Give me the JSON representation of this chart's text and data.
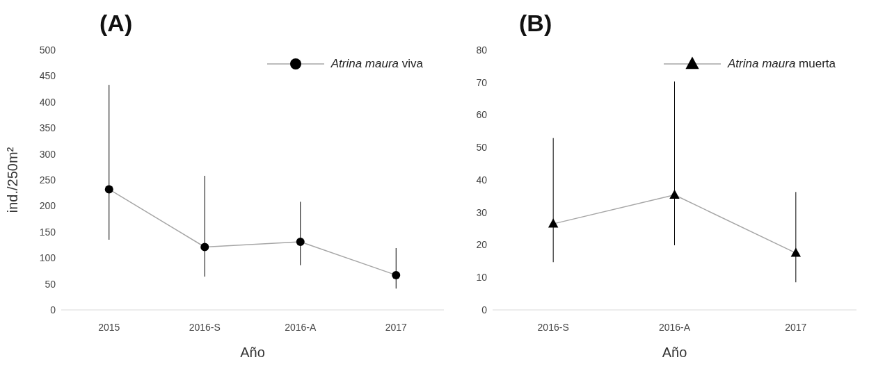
{
  "chart_data": [
    {
      "type": "line",
      "title": "(A)",
      "xlabel": "Año",
      "ylabel": "ind./250m²",
      "categories": [
        "2015",
        "2016-S",
        "2016-A",
        "2017"
      ],
      "series": [
        {
          "name": "Atrina maura viva",
          "color": "#000000",
          "marker": "circle",
          "values": [
            232,
            121,
            131,
            67
          ],
          "errors": [
            [
              135,
              433
            ],
            [
              64,
              258
            ],
            [
              86,
              208
            ],
            [
              41,
              119
            ]
          ]
        }
      ],
      "ylim": [
        0,
        500
      ],
      "yticks": [
        0,
        50,
        100,
        150,
        200,
        250,
        300,
        350,
        400,
        450,
        500
      ],
      "grid": false,
      "legend": "top right"
    },
    {
      "type": "line",
      "title": "(B)",
      "xlabel": "Año",
      "categories": [
        "2016-S",
        "2016-A",
        "2017"
      ],
      "series": [
        {
          "name": "Atrina maura muerta",
          "color": "#000000",
          "marker": "triangle",
          "values": [
            26.5,
            35.4,
            17.5
          ],
          "errors": [
            [
              14.7,
              52.9
            ],
            [
              19.9,
              70.3
            ],
            [
              8.5,
              36.3
            ]
          ]
        }
      ],
      "ylim": [
        0,
        80
      ],
      "yticks": [
        0,
        10,
        20,
        30,
        40,
        50,
        60,
        70,
        80
      ],
      "grid": false,
      "legend": "top right"
    }
  ]
}
